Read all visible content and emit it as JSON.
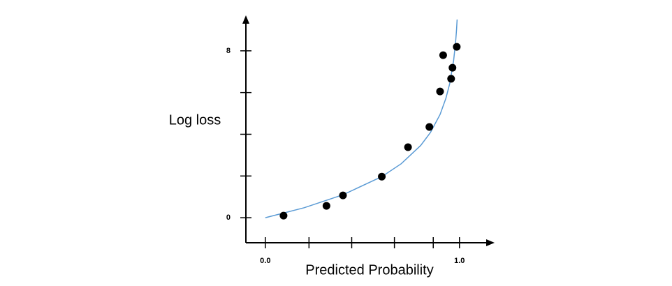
{
  "chart_data": {
    "type": "scatter",
    "xlabel": "Predicted Probability",
    "ylabel": "Log loss",
    "xlim": [
      -0.1,
      1.17
    ],
    "ylim": [
      -1.2,
      9.6
    ],
    "xticks": [
      {
        "value": 0,
        "label": "0.0"
      },
      {
        "value": 1,
        "label": "1.0"
      }
    ],
    "xminorticks": [
      0.225,
      0.445,
      0.665,
      0.865
    ],
    "yticks": [
      0,
      8
    ],
    "yminorticks": [
      2,
      4,
      6
    ],
    "series": [
      {
        "color": "#000000",
        "x": [
          0.094,
          0.315,
          0.4,
          0.6,
          0.735,
          0.845,
          0.9,
          0.916,
          0.957,
          0.964,
          0.986
        ],
        "values": [
          0.1,
          0.57,
          1.07,
          1.97,
          3.38,
          4.35,
          6.05,
          7.79,
          6.66,
          7.19,
          8.19
        ]
      }
    ],
    "curve": {
      "color": "#5b9bd5",
      "x": [
        0,
        0.2,
        0.4,
        0.6,
        0.7,
        0.8,
        0.85,
        0.9,
        0.93,
        0.95,
        0.97,
        0.98,
        0.985,
        0.988
      ],
      "values": [
        0,
        0.48,
        1.1,
        1.97,
        2.59,
        3.46,
        4.08,
        4.95,
        5.72,
        6.44,
        7.54,
        8.41,
        9.03,
        9.5
      ]
    }
  }
}
